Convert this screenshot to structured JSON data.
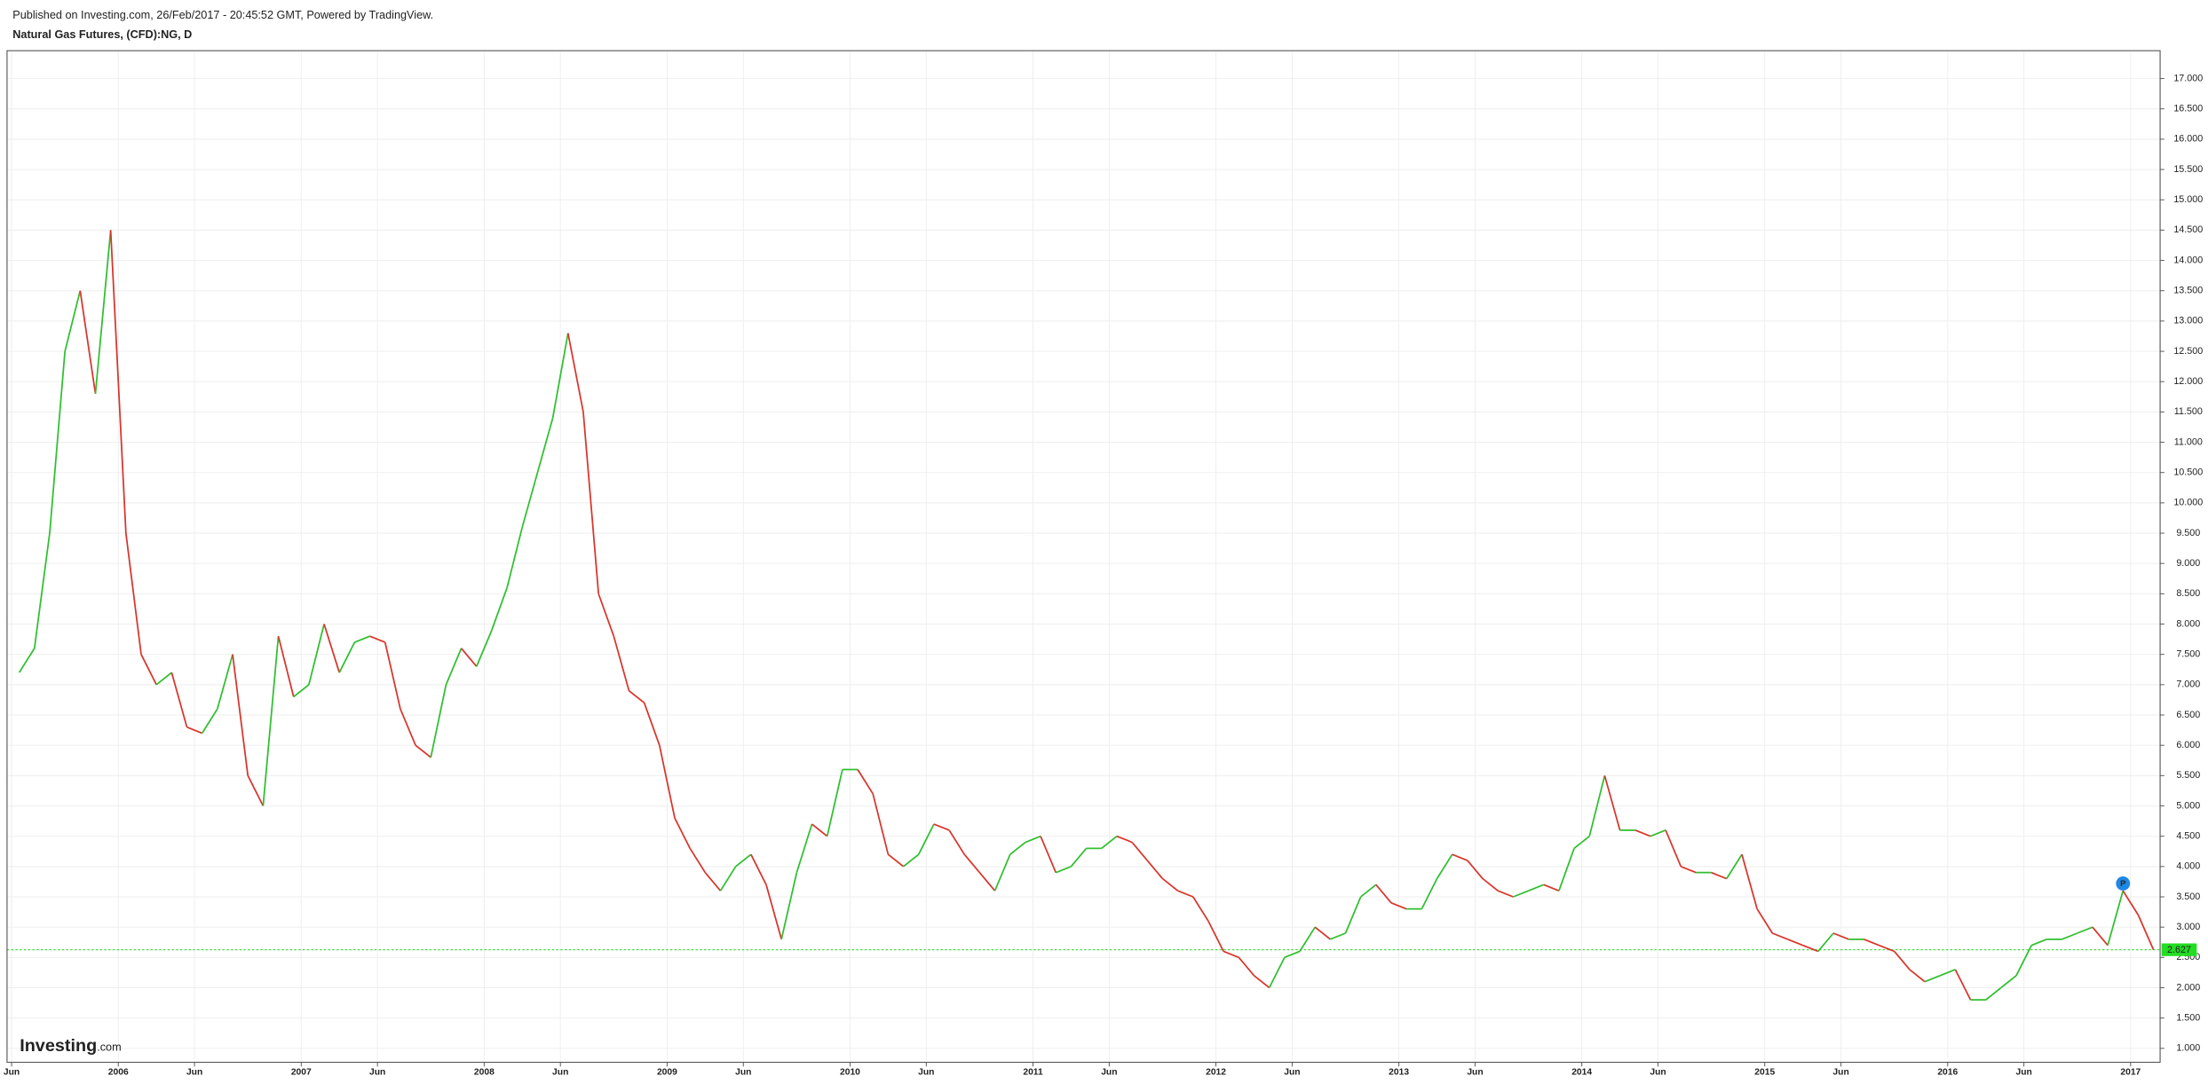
{
  "chart_data": {
    "type": "line",
    "subtitle": "Published on Investing.com, 26/Feb/2017 - 20:45:52 GMT, Powered by TradingView.",
    "title": "Natural Gas Futures, (CFD):NG, D",
    "logo": {
      "brand": "Investing",
      "suffix": ".com"
    },
    "x": [
      "2005-06",
      "2005-07",
      "2005-08",
      "2005-09",
      "2005-10",
      "2005-11",
      "2005-12",
      "2006-01",
      "2006-02",
      "2006-03",
      "2006-04",
      "2006-05",
      "2006-06",
      "2006-07",
      "2006-08",
      "2006-09",
      "2006-10",
      "2006-11",
      "2006-12",
      "2007-01",
      "2007-02",
      "2007-03",
      "2007-04",
      "2007-05",
      "2007-06",
      "2007-07",
      "2007-08",
      "2007-09",
      "2007-10",
      "2007-11",
      "2007-12",
      "2008-01",
      "2008-02",
      "2008-03",
      "2008-04",
      "2008-05",
      "2008-06",
      "2008-07",
      "2008-08",
      "2008-09",
      "2008-10",
      "2008-11",
      "2008-12",
      "2009-01",
      "2009-02",
      "2009-03",
      "2009-04",
      "2009-05",
      "2009-06",
      "2009-07",
      "2009-08",
      "2009-09",
      "2009-10",
      "2009-11",
      "2009-12",
      "2010-01",
      "2010-02",
      "2010-03",
      "2010-04",
      "2010-05",
      "2010-06",
      "2010-07",
      "2010-08",
      "2010-09",
      "2010-10",
      "2010-11",
      "2010-12",
      "2011-01",
      "2011-02",
      "2011-03",
      "2011-04",
      "2011-05",
      "2011-06",
      "2011-07",
      "2011-08",
      "2011-09",
      "2011-10",
      "2011-11",
      "2011-12",
      "2012-01",
      "2012-02",
      "2012-03",
      "2012-04",
      "2012-05",
      "2012-06",
      "2012-07",
      "2012-08",
      "2012-09",
      "2012-10",
      "2012-11",
      "2012-12",
      "2013-01",
      "2013-02",
      "2013-03",
      "2013-04",
      "2013-05",
      "2013-06",
      "2013-07",
      "2013-08",
      "2013-09",
      "2013-10",
      "2013-11",
      "2013-12",
      "2014-01",
      "2014-02",
      "2014-03",
      "2014-04",
      "2014-05",
      "2014-06",
      "2014-07",
      "2014-08",
      "2014-09",
      "2014-10",
      "2014-11",
      "2014-12",
      "2015-01",
      "2015-02",
      "2015-03",
      "2015-04",
      "2015-05",
      "2015-06",
      "2015-07",
      "2015-08",
      "2015-09",
      "2015-10",
      "2015-11",
      "2015-12",
      "2016-01",
      "2016-02",
      "2016-03",
      "2016-04",
      "2016-05",
      "2016-06",
      "2016-07",
      "2016-08",
      "2016-09",
      "2016-10",
      "2016-11",
      "2016-12",
      "2017-01",
      "2017-02"
    ],
    "values": [
      7.2,
      7.6,
      9.5,
      12.5,
      13.5,
      11.8,
      14.5,
      9.5,
      7.5,
      7.0,
      7.2,
      6.3,
      6.2,
      6.6,
      7.5,
      5.5,
      5.0,
      7.8,
      6.8,
      7.0,
      8.0,
      7.2,
      7.7,
      7.8,
      7.7,
      6.6,
      6.0,
      5.8,
      7.0,
      7.6,
      7.3,
      7.9,
      8.6,
      9.6,
      10.5,
      11.4,
      12.8,
      11.5,
      8.5,
      7.8,
      6.9,
      6.7,
      6.0,
      4.8,
      4.3,
      3.9,
      3.6,
      4.0,
      4.2,
      3.7,
      2.8,
      3.9,
      4.7,
      4.5,
      5.6,
      5.6,
      5.2,
      4.2,
      4.0,
      4.2,
      4.7,
      4.6,
      4.2,
      3.9,
      3.6,
      4.2,
      4.4,
      4.5,
      3.9,
      4.0,
      4.3,
      4.3,
      4.5,
      4.4,
      4.1,
      3.8,
      3.6,
      3.5,
      3.1,
      2.6,
      2.5,
      2.2,
      2.0,
      2.5,
      2.6,
      3.0,
      2.8,
      2.9,
      3.5,
      3.7,
      3.4,
      3.3,
      3.3,
      3.8,
      4.2,
      4.1,
      3.8,
      3.6,
      3.5,
      3.6,
      3.7,
      3.6,
      4.3,
      4.5,
      5.5,
      4.6,
      4.6,
      4.5,
      4.6,
      4.0,
      3.9,
      3.9,
      3.8,
      4.2,
      3.3,
      2.9,
      2.8,
      2.7,
      2.6,
      2.9,
      2.8,
      2.8,
      2.7,
      2.6,
      2.3,
      2.1,
      2.2,
      2.3,
      1.8,
      1.8,
      2.0,
      2.2,
      2.7,
      2.8,
      2.8,
      2.9,
      3.0,
      2.7,
      3.6,
      3.2,
      2.627
    ],
    "up_color": "#2fbf2f",
    "down_color": "#d9342b",
    "last_price_color": "#22dd22",
    "marker": {
      "label": "P",
      "x": "2016-12",
      "value": 3.72,
      "color": "#1e88e5"
    },
    "xlim": [
      "2005-05",
      "2017-03"
    ],
    "xticks": [
      {
        "value": "2005-06",
        "label": "Jun"
      },
      {
        "value": "2006-01",
        "label": "2006"
      },
      {
        "value": "2006-06",
        "label": "Jun"
      },
      {
        "value": "2007-01",
        "label": "2007"
      },
      {
        "value": "2007-06",
        "label": "Jun"
      },
      {
        "value": "2008-01",
        "label": "2008"
      },
      {
        "value": "2008-06",
        "label": "Jun"
      },
      {
        "value": "2009-01",
        "label": "2009"
      },
      {
        "value": "2009-06",
        "label": "Jun"
      },
      {
        "value": "2010-01",
        "label": "2010"
      },
      {
        "value": "2010-06",
        "label": "Jun"
      },
      {
        "value": "2011-01",
        "label": "2011"
      },
      {
        "value": "2011-06",
        "label": "Jun"
      },
      {
        "value": "2012-01",
        "label": "2012"
      },
      {
        "value": "2012-06",
        "label": "Jun"
      },
      {
        "value": "2013-01",
        "label": "2013"
      },
      {
        "value": "2013-06",
        "label": "Jun"
      },
      {
        "value": "2014-01",
        "label": "2014"
      },
      {
        "value": "2014-06",
        "label": "Jun"
      },
      {
        "value": "2015-01",
        "label": "2015"
      },
      {
        "value": "2015-06",
        "label": "Jun"
      },
      {
        "value": "2016-01",
        "label": "2016"
      },
      {
        "value": "2016-06",
        "label": "Jun"
      },
      {
        "value": "2017-01",
        "label": "2017"
      }
    ],
    "ylim": [
      0.77,
      17.46
    ],
    "yticks": [
      {
        "value": 1,
        "label": "1.000"
      },
      {
        "value": 1.5,
        "label": "1.500"
      },
      {
        "value": 2,
        "label": "2.000"
      },
      {
        "value": 2.5,
        "label": "2.500"
      },
      {
        "value": 3,
        "label": "3.000"
      },
      {
        "value": 3.5,
        "label": "3.500"
      },
      {
        "value": 4,
        "label": "4.000"
      },
      {
        "value": 4.5,
        "label": "4.500"
      },
      {
        "value": 5,
        "label": "5.000"
      },
      {
        "value": 5.5,
        "label": "5.500"
      },
      {
        "value": 6,
        "label": "6.000"
      },
      {
        "value": 6.5,
        "label": "6.500"
      },
      {
        "value": 7,
        "label": "7.000"
      },
      {
        "value": 7.5,
        "label": "7.500"
      },
      {
        "value": 8,
        "label": "8.000"
      },
      {
        "value": 8.5,
        "label": "8.500"
      },
      {
        "value": 9,
        "label": "9.000"
      },
      {
        "value": 9.5,
        "label": "9.500"
      },
      {
        "value": 10,
        "label": "10.000"
      },
      {
        "value": 10.5,
        "label": "10.500"
      },
      {
        "value": 11,
        "label": "11.000"
      },
      {
        "value": 11.5,
        "label": "11.500"
      },
      {
        "value": 12,
        "label": "12.000"
      },
      {
        "value": 12.5,
        "label": "12.500"
      },
      {
        "value": 13,
        "label": "13.000"
      },
      {
        "value": 13.5,
        "label": "13.500"
      },
      {
        "value": 14,
        "label": "14.000"
      },
      {
        "value": 14.5,
        "label": "14.500"
      },
      {
        "value": 15,
        "label": "15.000"
      },
      {
        "value": 15.5,
        "label": "15.500"
      },
      {
        "value": 16,
        "label": "16.000"
      },
      {
        "value": 16.5,
        "label": "16.500"
      },
      {
        "value": 17,
        "label": "17.000"
      }
    ],
    "grid": true
  }
}
